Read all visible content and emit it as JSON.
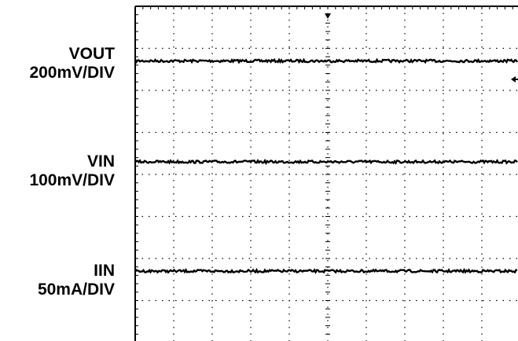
{
  "chart_data": {
    "type": "line",
    "title": "",
    "xlabel": "",
    "ylabel": "",
    "grid": true,
    "grid_divisions": {
      "x": 10,
      "y": 8
    },
    "channels": [
      {
        "name": "VOUT",
        "scale": "200mV/DIV",
        "level_div": 1.3
      },
      {
        "name": "VIN",
        "scale": "100mV/DIV",
        "level_div": 3.7
      },
      {
        "name": "IIN",
        "scale": "50mA/DIV",
        "level_div": 6.3
      }
    ],
    "trigger_marker": "top-center",
    "level_marker": "right-edge"
  },
  "colors": {
    "background": "#ffffff",
    "grid": "#000000",
    "trace": "#000000"
  }
}
